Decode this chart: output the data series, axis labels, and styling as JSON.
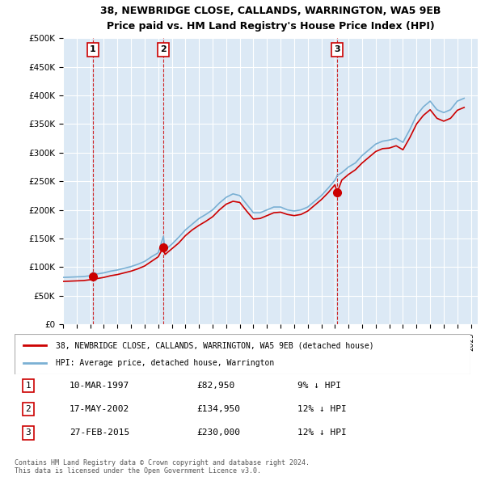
{
  "title": "38, NEWBRIDGE CLOSE, CALLANDS, WARRINGTON, WA5 9EB",
  "subtitle": "Price paid vs. HM Land Registry's House Price Index (HPI)",
  "ylabel_ticks": [
    "£0",
    "£50K",
    "£100K",
    "£150K",
    "£200K",
    "£250K",
    "£300K",
    "£350K",
    "£400K",
    "£450K",
    "£500K"
  ],
  "ytick_values": [
    0,
    50000,
    100000,
    150000,
    200000,
    250000,
    300000,
    350000,
    400000,
    450000,
    500000
  ],
  "xlim_start": 1995.0,
  "xlim_end": 2025.5,
  "ylim_min": 0,
  "ylim_max": 500000,
  "background_color": "#dce9f5",
  "plot_bg_color": "#dce9f5",
  "grid_color": "#ffffff",
  "sale_dates": [
    1997.19,
    2002.38,
    2015.16
  ],
  "sale_prices": [
    82950,
    134950,
    230000
  ],
  "sale_labels": [
    "1",
    "2",
    "3"
  ],
  "sale_dot_color": "#cc0000",
  "sale_vline_color": "#cc0000",
  "red_line_color": "#cc0000",
  "blue_line_color": "#7ab0d4",
  "legend_red_label": "38, NEWBRIDGE CLOSE, CALLANDS, WARRINGTON, WA5 9EB (detached house)",
  "legend_blue_label": "HPI: Average price, detached house, Warrington",
  "table_data": [
    [
      "1",
      "10-MAR-1997",
      "£82,950",
      "9% ↓ HPI"
    ],
    [
      "2",
      "17-MAY-2002",
      "£134,950",
      "12% ↓ HPI"
    ],
    [
      "3",
      "27-FEB-2015",
      "£230,000",
      "12% ↓ HPI"
    ]
  ],
  "footer_text": "Contains HM Land Registry data © Crown copyright and database right 2024.\nThis data is licensed under the Open Government Licence v3.0.",
  "hpi_years": [
    1995.0,
    1995.5,
    1996.0,
    1996.5,
    1997.0,
    1997.19,
    1997.5,
    1998.0,
    1998.5,
    1999.0,
    1999.5,
    2000.0,
    2000.5,
    2001.0,
    2001.5,
    2002.0,
    2002.38,
    2002.5,
    2003.0,
    2003.5,
    2004.0,
    2004.5,
    2005.0,
    2005.5,
    2006.0,
    2006.5,
    2007.0,
    2007.5,
    2008.0,
    2008.5,
    2009.0,
    2009.5,
    2010.0,
    2010.5,
    2011.0,
    2011.5,
    2012.0,
    2012.5,
    2013.0,
    2013.5,
    2014.0,
    2014.5,
    2015.0,
    2015.16,
    2015.5,
    2016.0,
    2016.5,
    2017.0,
    2017.5,
    2018.0,
    2018.5,
    2019.0,
    2019.5,
    2020.0,
    2020.5,
    2021.0,
    2021.5,
    2022.0,
    2022.5,
    2023.0,
    2023.5,
    2024.0,
    2024.5
  ],
  "hpi_values": [
    82000,
    82500,
    83000,
    83500,
    85000,
    90700,
    88000,
    90000,
    93000,
    95000,
    98000,
    101000,
    105000,
    110000,
    118000,
    125000,
    153800,
    130000,
    140000,
    152000,
    165000,
    175000,
    185000,
    192000,
    200000,
    212000,
    222000,
    228000,
    225000,
    210000,
    195000,
    195000,
    200000,
    205000,
    205000,
    200000,
    198000,
    200000,
    205000,
    215000,
    225000,
    238000,
    252000,
    260000,
    265000,
    275000,
    282000,
    295000,
    305000,
    315000,
    320000,
    322000,
    325000,
    318000,
    340000,
    365000,
    380000,
    390000,
    375000,
    370000,
    375000,
    390000,
    395000
  ],
  "red_years": [
    1995.0,
    1995.5,
    1996.0,
    1996.5,
    1997.0,
    1997.19,
    1997.5,
    1998.0,
    1998.5,
    1999.0,
    1999.5,
    2000.0,
    2000.5,
    2001.0,
    2001.5,
    2002.0,
    2002.38,
    2002.5,
    2003.0,
    2003.5,
    2004.0,
    2004.5,
    2005.0,
    2005.5,
    2006.0,
    2006.5,
    2007.0,
    2007.5,
    2008.0,
    2008.5,
    2009.0,
    2009.5,
    2010.0,
    2010.5,
    2011.0,
    2011.5,
    2012.0,
    2012.5,
    2013.0,
    2013.5,
    2014.0,
    2014.5,
    2015.0,
    2015.16,
    2015.5,
    2016.0,
    2016.5,
    2017.0,
    2017.5,
    2018.0,
    2018.5,
    2019.0,
    2019.5,
    2020.0,
    2020.5,
    2021.0,
    2021.5,
    2022.0,
    2022.5,
    2023.0,
    2023.5,
    2024.0,
    2024.5
  ],
  "red_values": [
    75000,
    75500,
    76000,
    76500,
    78000,
    82950,
    80000,
    82000,
    85000,
    87000,
    90000,
    93000,
    97000,
    102000,
    110000,
    118000,
    134950,
    122000,
    132000,
    142000,
    155000,
    165000,
    173000,
    180000,
    188000,
    200000,
    210000,
    215000,
    213000,
    198000,
    184000,
    185000,
    190000,
    195000,
    196000,
    192000,
    190000,
    192000,
    198000,
    208000,
    218000,
    230000,
    244000,
    230000,
    252000,
    262000,
    270000,
    282000,
    292000,
    302000,
    307000,
    308000,
    312000,
    305000,
    326000,
    350000,
    365000,
    375000,
    360000,
    355000,
    360000,
    374000,
    379000
  ]
}
